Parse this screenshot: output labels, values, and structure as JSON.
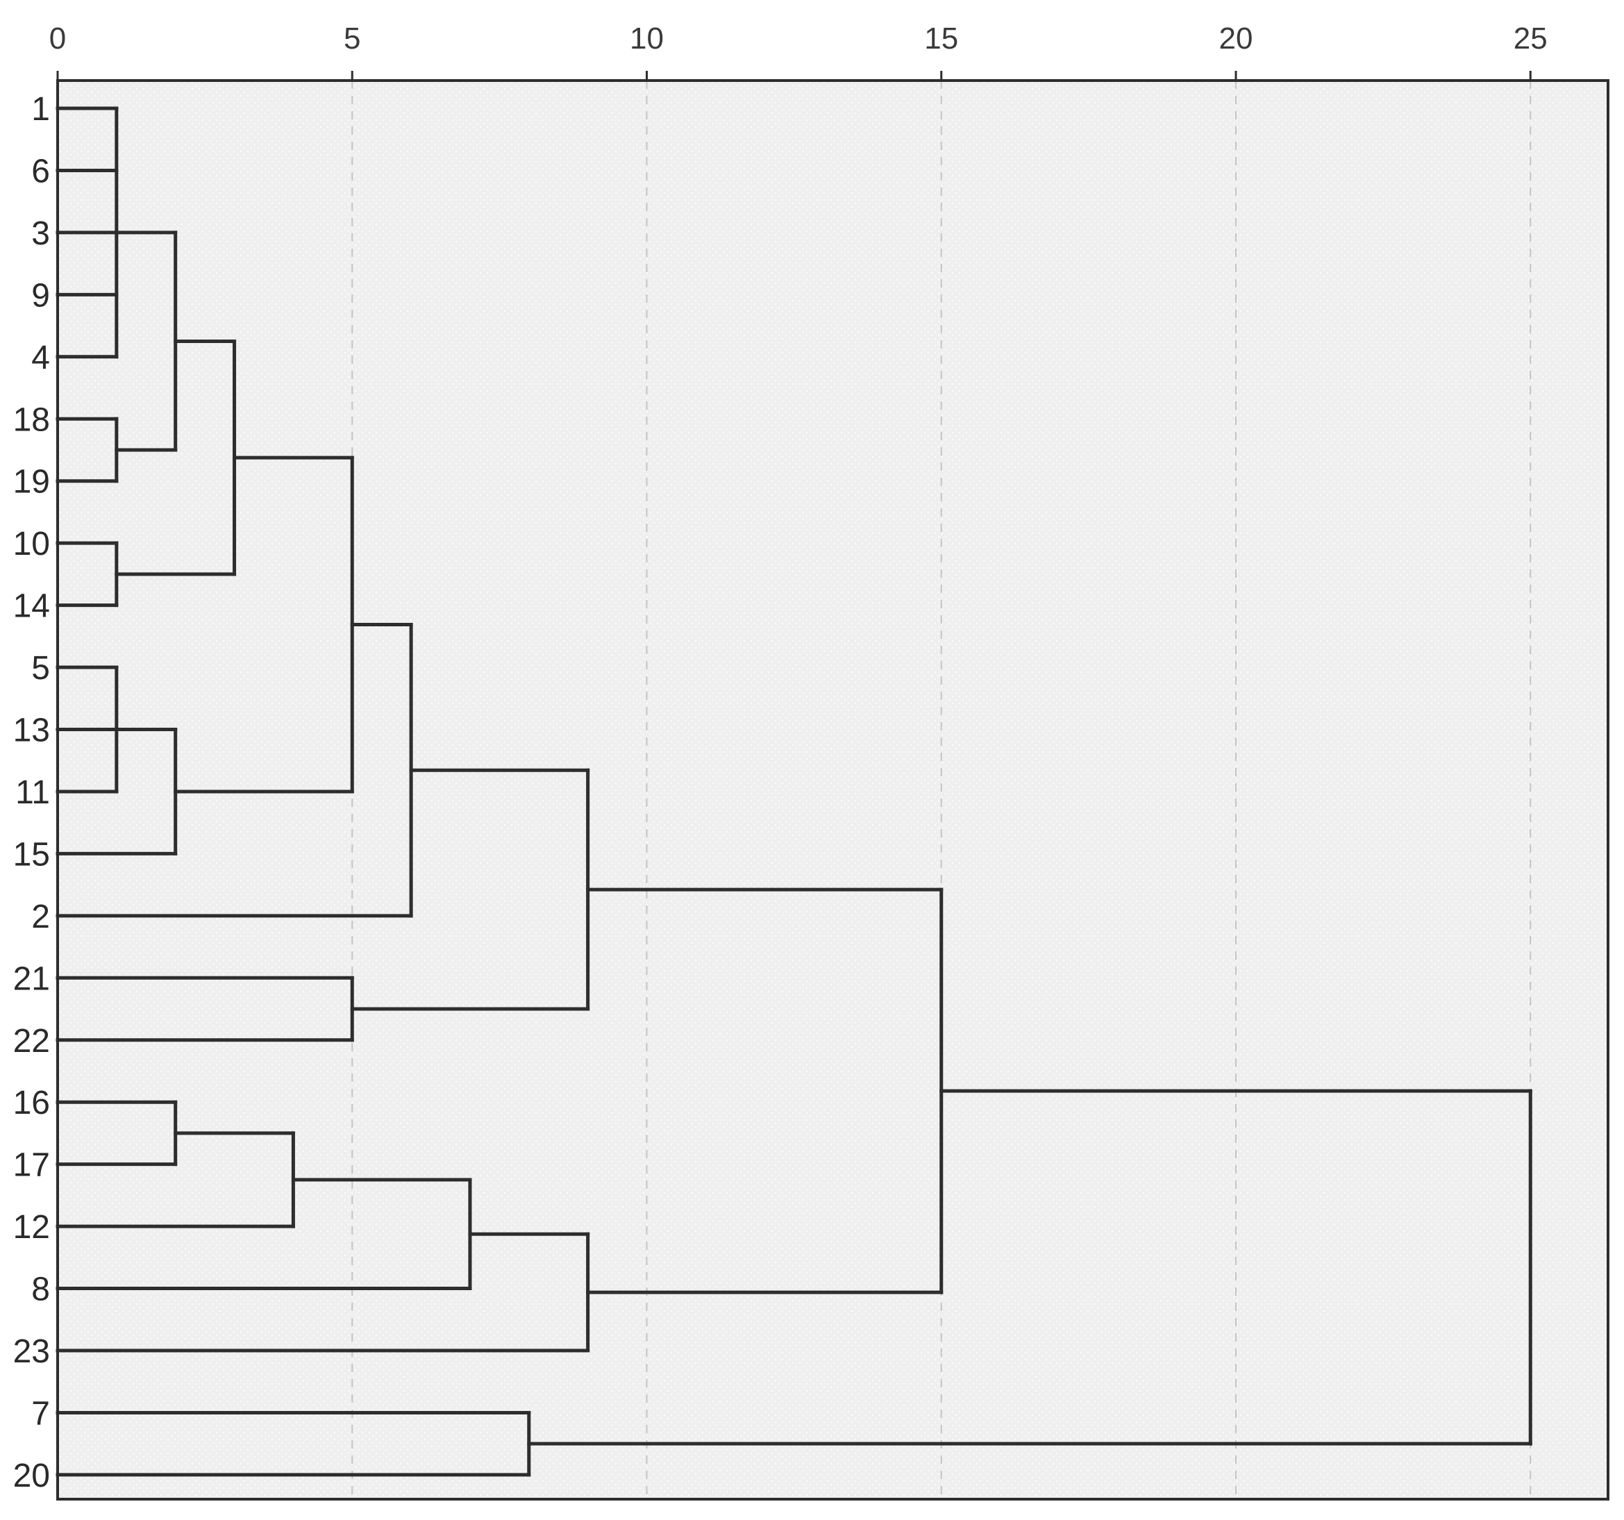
{
  "chart_data": {
    "type": "dendrogram",
    "title": "",
    "xlabel": "",
    "ylabel": "",
    "orientation": "horizontal",
    "axis_position": "top",
    "xlim": [
      0,
      26.2
    ],
    "xticks": [
      0,
      5,
      10,
      15,
      20,
      25
    ],
    "xtick_labels": [
      "0",
      "5",
      "10",
      "15",
      "20",
      "25"
    ],
    "grid": true,
    "leaf_order": [
      "1",
      "6",
      "3",
      "9",
      "4",
      "18",
      "19",
      "10",
      "14",
      "5",
      "13",
      "11",
      "15",
      "2",
      "21",
      "22",
      "16",
      "17",
      "12",
      "8",
      "23",
      "7",
      "20"
    ],
    "merges": [
      {
        "id": "A",
        "children": [
          "1",
          "6",
          "3",
          "9",
          "4"
        ],
        "height": 1
      },
      {
        "id": "B",
        "children": [
          "18",
          "19"
        ],
        "height": 1
      },
      {
        "id": "C",
        "children": [
          "A",
          "B"
        ],
        "height": 2
      },
      {
        "id": "D",
        "children": [
          "10",
          "14"
        ],
        "height": 1
      },
      {
        "id": "E",
        "children": [
          "C",
          "D"
        ],
        "height": 3
      },
      {
        "id": "F",
        "children": [
          "5",
          "13",
          "11"
        ],
        "height": 1
      },
      {
        "id": "G",
        "children": [
          "F",
          "15"
        ],
        "height": 2
      },
      {
        "id": "H",
        "children": [
          "E",
          "G"
        ],
        "height": 5
      },
      {
        "id": "I",
        "children": [
          "H",
          "2"
        ],
        "height": 6
      },
      {
        "id": "J",
        "children": [
          "21",
          "22"
        ],
        "height": 5
      },
      {
        "id": "K",
        "children": [
          "I",
          "J"
        ],
        "height": 9
      },
      {
        "id": "L",
        "children": [
          "16",
          "17"
        ],
        "height": 2
      },
      {
        "id": "M",
        "children": [
          "L",
          "12"
        ],
        "height": 4
      },
      {
        "id": "N",
        "children": [
          "M",
          "8"
        ],
        "height": 7
      },
      {
        "id": "O",
        "children": [
          "N",
          "23"
        ],
        "height": 9
      },
      {
        "id": "P",
        "children": [
          "K",
          "O"
        ],
        "height": 15
      },
      {
        "id": "Q",
        "children": [
          "7",
          "20"
        ],
        "height": 8
      },
      {
        "id": "R",
        "children": [
          "P",
          "Q"
        ],
        "height": 25
      }
    ]
  },
  "colors": {
    "plot_background": "#efefef",
    "speckle": "#ffffff",
    "link": "#2d2d2d",
    "gridline": "#c4c4c4",
    "frame": "#2d2d2d",
    "label": "#2a2a2a"
  }
}
